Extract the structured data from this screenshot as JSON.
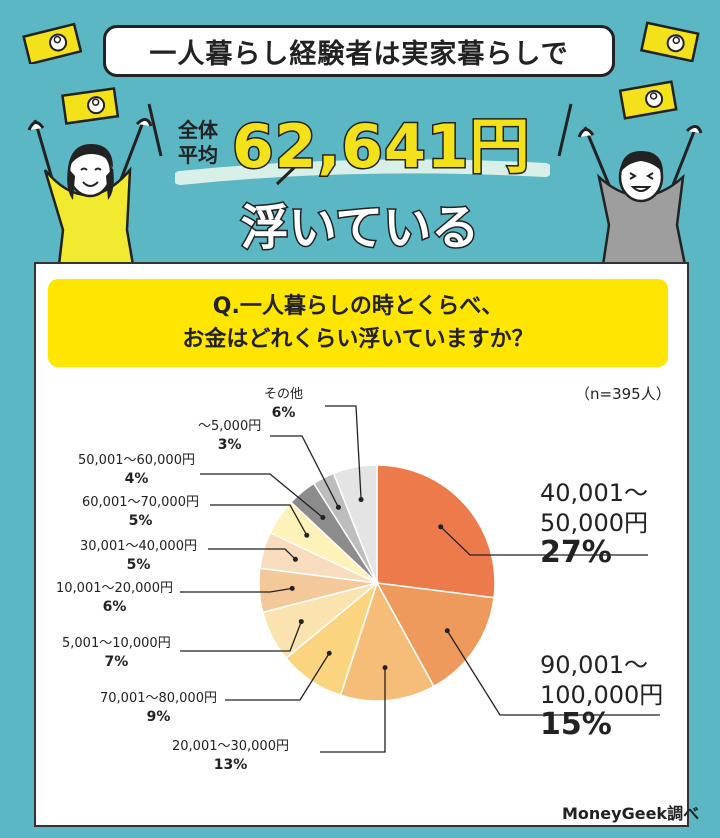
{
  "headline": "一人暮らし経験者は実家暮らしで",
  "average": {
    "label_line1": "全体",
    "label_line2": "平均",
    "amount": "62,641円",
    "trailing": "浮いている"
  },
  "question": {
    "line1": "Q.一人暮らしの時とくらべ、",
    "line2": "お金はどれくらい浮いていますか？"
  },
  "sample": "（n=395人）",
  "credit": "MoneyGeek調べ",
  "chart_data": {
    "type": "pie",
    "title": "",
    "slices": [
      {
        "name": "40,001～50,000円",
        "label_line1": "40,001～",
        "label_line2": "50,000円",
        "value": 27,
        "pct": "27%",
        "color": "#ec7a4a"
      },
      {
        "name": "90,001～100,000円",
        "label_line1": "90,001～",
        "label_line2": "100,000円",
        "value": 15,
        "pct": "15%",
        "color": "#ee9a5c"
      },
      {
        "name": "20,001～30,000円",
        "label_line1": "20,001～30,000円",
        "value": 13,
        "pct": "13%",
        "color": "#f6bd78"
      },
      {
        "name": "70,001～80,000円",
        "label_line1": "70,001～80,000円",
        "value": 9,
        "pct": "9%",
        "color": "#fad47f"
      },
      {
        "name": "5,001～10,000円",
        "label_line1": "5,001～10,000円",
        "value": 7,
        "pct": "7%",
        "color": "#fbe3b0"
      },
      {
        "name": "10,001～20,000円",
        "label_line1": "10,001～20,000円",
        "value": 6,
        "pct": "6%",
        "color": "#f4c99a"
      },
      {
        "name": "30,001～40,000円",
        "label_line1": "30,001～40,000円",
        "value": 5,
        "pct": "5%",
        "color": "#f7dcbd"
      },
      {
        "name": "60,001～70,000円",
        "label_line1": "60,001～70,000円",
        "value": 5,
        "pct": "5%",
        "color": "#fdf2b8"
      },
      {
        "name": "50,001～60,000円",
        "label_line1": "50,001～60,000円",
        "value": 4,
        "pct": "4%",
        "color": "#8c8c8c"
      },
      {
        "name": "～5,000円",
        "label_line1": "～5,000円",
        "value": 3,
        "pct": "3%",
        "color": "#bdbdbd"
      },
      {
        "name": "その他",
        "label_line1": "その他",
        "value": 6,
        "pct": "6%",
        "color": "#e4e4e4"
      }
    ]
  },
  "colors": {
    "background": "#5ab7c3",
    "highlight": "#ffe600",
    "accent_text": "#f3e21a"
  },
  "icons": [
    "money-bill-icon",
    "woman-cheering-icon",
    "man-cheering-icon"
  ]
}
